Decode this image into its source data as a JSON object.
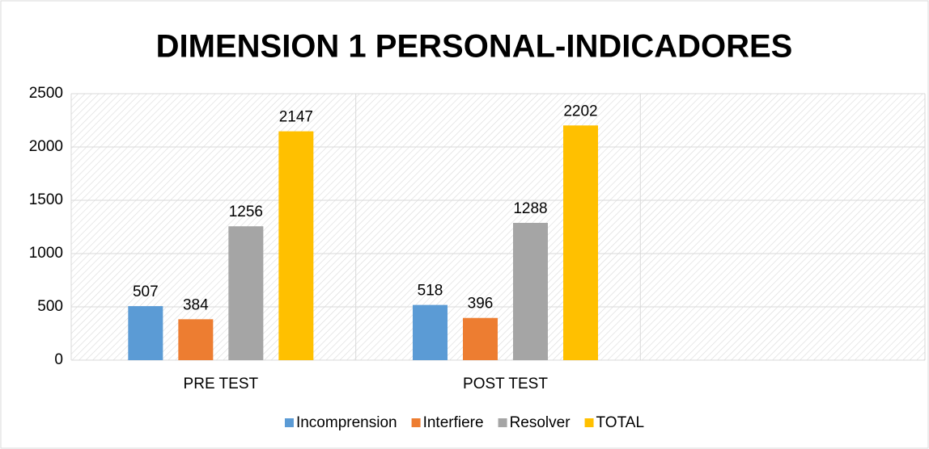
{
  "chart_data": {
    "type": "bar",
    "title": "DIMENSION 1 PERSONAL-INDICADORES",
    "categories": [
      "PRE TEST",
      "POST TEST",
      null
    ],
    "series": [
      {
        "name": "Incomprension",
        "color": "#5b9bd5",
        "values": [
          507,
          518,
          null
        ]
      },
      {
        "name": "Interfiere",
        "color": "#ed7d31",
        "values": [
          384,
          396,
          null
        ]
      },
      {
        "name": "Resolver",
        "color": "#a5a5a5",
        "values": [
          1256,
          1288,
          null
        ]
      },
      {
        "name": "TOTAL",
        "color": "#ffc000",
        "values": [
          2147,
          2202,
          null
        ]
      }
    ],
    "ylim": [
      0,
      2500
    ],
    "yticks": [
      0,
      500,
      1000,
      1500,
      2000,
      2500
    ],
    "grid": true,
    "legend": "bottom"
  }
}
